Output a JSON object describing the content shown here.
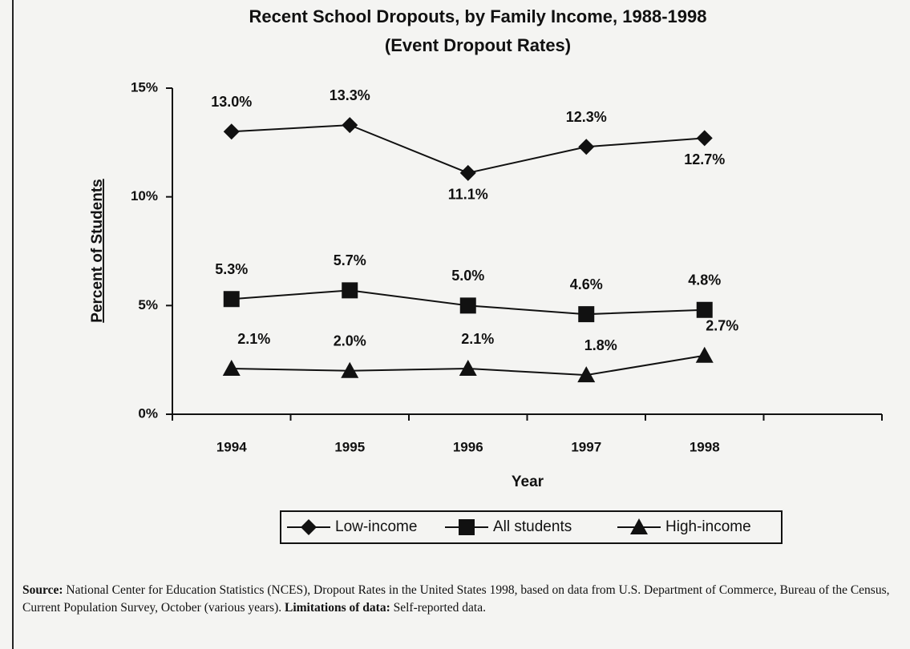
{
  "chart_data": {
    "type": "line",
    "title": [
      "Recent School Dropouts, by Family Income, 1988-1998",
      "(Event Dropout Rates)"
    ],
    "y_label": "Percent of Students",
    "x_label": "Year",
    "categories": [
      "1994",
      "1995",
      "1996",
      "1997",
      "1998",
      null
    ],
    "series": [
      {
        "name": "Low-income",
        "color": "#111111",
        "marker": "diamond",
        "values": [
          13.0,
          13.3,
          11.1,
          12.3,
          12.7,
          null
        ],
        "value_labels": [
          "13.0%",
          "13.3%",
          "11.1%",
          "12.3%",
          "12.7%",
          null
        ]
      },
      {
        "name": "All students",
        "color": "#111111",
        "marker": "square",
        "values": [
          5.3,
          5.7,
          5.0,
          4.6,
          4.8,
          null
        ],
        "value_labels": [
          "5.3%",
          "5.7%",
          "5.0%",
          "4.6%",
          "4.8%",
          null
        ]
      },
      {
        "name": "High-income",
        "color": "#111111",
        "marker": "triangle",
        "values": [
          2.1,
          2.0,
          2.1,
          1.8,
          2.7,
          null
        ],
        "value_labels": [
          "2.1%",
          "2.0%",
          "2.1%",
          "1.8%",
          "2.7%",
          null
        ]
      }
    ],
    "ylim": [
      0,
      15
    ],
    "yticks": [
      {
        "value": 0,
        "label": "0%"
      },
      {
        "value": 5,
        "label": "5%"
      },
      {
        "value": 10,
        "label": "10%"
      },
      {
        "value": 15,
        "label": "15%"
      }
    ],
    "grid": false,
    "legend": "bottom",
    "source": {
      "label": "Source:",
      "text": "National Center for Education Statistics (NCES), Dropout Rates in the United States 1998, based on data from U.S. Department of Commerce, Bureau of the Census, Current Population Survey, October (various years).",
      "limitations_label": "Limitations of data:",
      "limitations_text": "Self-reported data."
    }
  }
}
